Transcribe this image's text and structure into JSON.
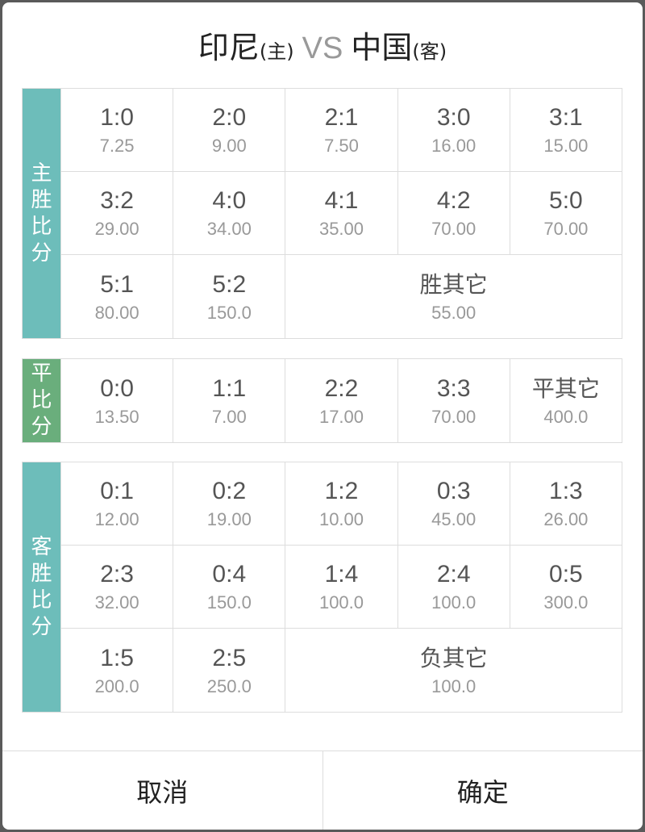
{
  "title": {
    "home": "印尼",
    "home_tag": "(主)",
    "vs": "VS",
    "away": "中国",
    "away_tag": "(客)"
  },
  "colors": {
    "win": "#6dbdba",
    "draw": "#6aae7c",
    "loss": "#6dbdba"
  },
  "sections": [
    {
      "key": "win",
      "label": [
        "主",
        "胜",
        "比",
        "分"
      ],
      "cells": [
        {
          "score": "1:0",
          "odds": "7.25"
        },
        {
          "score": "2:0",
          "odds": "9.00"
        },
        {
          "score": "2:1",
          "odds": "7.50"
        },
        {
          "score": "3:0",
          "odds": "16.00"
        },
        {
          "score": "3:1",
          "odds": "15.00"
        },
        {
          "score": "3:2",
          "odds": "29.00"
        },
        {
          "score": "4:0",
          "odds": "34.00"
        },
        {
          "score": "4:1",
          "odds": "35.00"
        },
        {
          "score": "4:2",
          "odds": "70.00"
        },
        {
          "score": "5:0",
          "odds": "70.00"
        },
        {
          "score": "5:1",
          "odds": "80.00"
        },
        {
          "score": "5:2",
          "odds": "150.0"
        },
        {
          "score": "胜其它",
          "odds": "55.00",
          "wide": true
        }
      ]
    },
    {
      "key": "draw",
      "label": [
        "平",
        "比",
        "分"
      ],
      "cells": [
        {
          "score": "0:0",
          "odds": "13.50"
        },
        {
          "score": "1:1",
          "odds": "7.00"
        },
        {
          "score": "2:2",
          "odds": "17.00"
        },
        {
          "score": "3:3",
          "odds": "70.00"
        },
        {
          "score": "平其它",
          "odds": "400.0"
        }
      ]
    },
    {
      "key": "loss",
      "label": [
        "客",
        "胜",
        "比",
        "分"
      ],
      "cells": [
        {
          "score": "0:1",
          "odds": "12.00"
        },
        {
          "score": "0:2",
          "odds": "19.00"
        },
        {
          "score": "1:2",
          "odds": "10.00"
        },
        {
          "score": "0:3",
          "odds": "45.00"
        },
        {
          "score": "1:3",
          "odds": "26.00"
        },
        {
          "score": "2:3",
          "odds": "32.00"
        },
        {
          "score": "0:4",
          "odds": "150.0"
        },
        {
          "score": "1:4",
          "odds": "100.0"
        },
        {
          "score": "2:4",
          "odds": "100.0"
        },
        {
          "score": "0:5",
          "odds": "300.0"
        },
        {
          "score": "1:5",
          "odds": "200.0"
        },
        {
          "score": "2:5",
          "odds": "250.0"
        },
        {
          "score": "负其它",
          "odds": "100.0",
          "wide": true
        }
      ]
    }
  ],
  "footer": {
    "cancel": "取消",
    "confirm": "确定"
  }
}
